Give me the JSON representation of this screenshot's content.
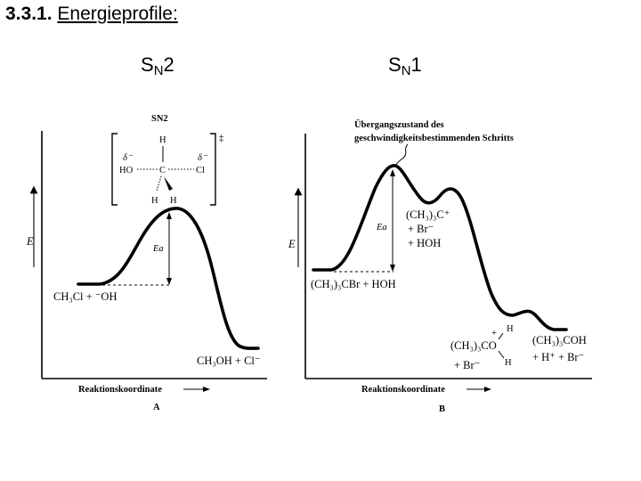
{
  "heading": {
    "number": "3.3.1.",
    "text": "Energieprofile:"
  },
  "mechanisms": {
    "left": {
      "s": "S",
      "sub": "N",
      "num": "2"
    },
    "right": {
      "s": "S",
      "sub": "N",
      "num": "1"
    }
  },
  "diagram_a": {
    "ts_title": "SN2",
    "ts_dagger": "‡",
    "ts_atoms": {
      "top_h": "H",
      "ho": "HO",
      "c": "C",
      "cl": "Cl",
      "bottom_h1": "H",
      "bottom_h2": "H"
    },
    "delta_minus": "δ⁻",
    "y_axis": "E",
    "ea": "Ea",
    "reactants": "CH₃Cl + ⁻OH",
    "products": "CH₃OH + Cl⁻",
    "x_axis": "Reaktionskoordinate",
    "panel": "A"
  },
  "diagram_b": {
    "ts_note_line1": "Übergangszustand des",
    "ts_note_line2": "geschwindigkeitsbestimmenden Schritts",
    "y_axis": "E",
    "ea": "Ea",
    "intermediate_line1": "(CH₃)₃C⁺",
    "intermediate_line2": "+ Br⁻",
    "intermediate_line3": "+ HOH",
    "reactants": "(CH₃)₃CBr + HOH",
    "oxonium_h": "H",
    "oxonium_main": "(CH₃)₃CO",
    "oxonium_h2": "H",
    "oxonium_plus": "+",
    "oxonium_br": "+ Br⁻",
    "products_line1": "(CH₃)₃COH",
    "products_line2": "+ H⁺ + Br⁻",
    "x_axis": "Reaktionskoordinate",
    "panel": "B"
  }
}
